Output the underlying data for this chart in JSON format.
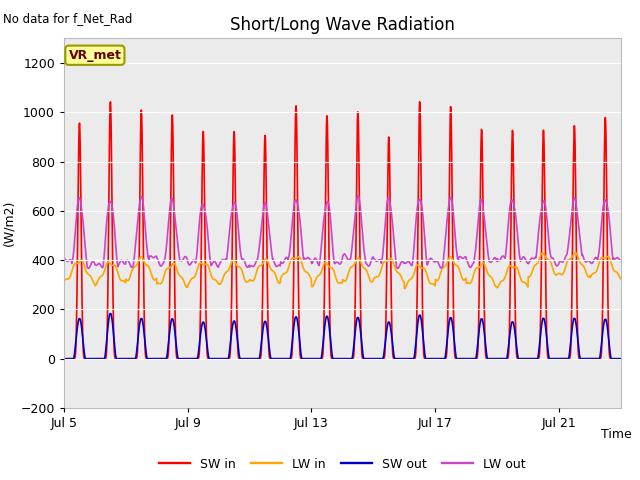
{
  "title": "Short/Long Wave Radiation",
  "xlabel": "Time",
  "ylabel": "(W/m2)",
  "top_left_text": "No data for f_Net_Rad",
  "legend_label_text": "VR_met",
  "ylim": [
    -200,
    1300
  ],
  "yticks": [
    -200,
    0,
    200,
    400,
    600,
    800,
    1000,
    1200
  ],
  "x_tick_labels": [
    "Jul 5",
    "Jul 9",
    "Jul 13",
    "Jul 17",
    "Jul 21"
  ],
  "x_pos_adjusted": [
    0,
    4,
    8,
    12,
    16
  ],
  "n_days": 18,
  "SW_in_peak": 1000,
  "LW_in_base": 310,
  "LW_in_peak": 395,
  "SW_out_peak": 170,
  "LW_out_base": 390,
  "LW_out_peak": 640,
  "colors": {
    "SW_in": "#ff0000",
    "LW_in": "#ffa500",
    "SW_out": "#0000cc",
    "LW_out": "#cc44cc"
  },
  "line_width": 1.2,
  "background_color": "#ffffff",
  "plot_bg_color": "#ebebeb",
  "grid_color": "#ffffff",
  "legend_box_color": "#ffff99",
  "legend_box_edge": "#999900",
  "figsize": [
    6.4,
    4.8
  ],
  "dpi": 100
}
